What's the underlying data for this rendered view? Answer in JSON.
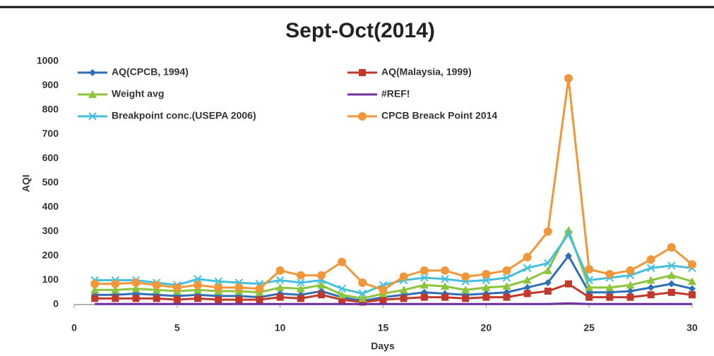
{
  "chart_data": {
    "type": "line",
    "title": "Sept-Oct(2014)",
    "xlabel": "Days",
    "ylabel": "AQI",
    "x": [
      1,
      2,
      3,
      4,
      5,
      6,
      7,
      8,
      9,
      10,
      11,
      12,
      13,
      14,
      15,
      16,
      17,
      18,
      19,
      20,
      21,
      22,
      23,
      24,
      25,
      26,
      27,
      28,
      29,
      30
    ],
    "xlim": [
      0,
      30
    ],
    "xticks": [
      0,
      5,
      10,
      15,
      20,
      25,
      30
    ],
    "ylim": [
      0,
      1000
    ],
    "yticks": [
      0,
      100,
      200,
      300,
      400,
      500,
      600,
      700,
      800,
      900,
      1000
    ],
    "grid": false,
    "legend": "upper left",
    "series": [
      {
        "name": "AQ(CPCB, 1994)",
        "color": "#2e6fb5",
        "marker": "diamond",
        "values": [
          40,
          40,
          45,
          40,
          35,
          40,
          35,
          35,
          30,
          45,
          40,
          55,
          30,
          15,
          30,
          40,
          50,
          45,
          40,
          45,
          50,
          70,
          90,
          200,
          50,
          50,
          55,
          70,
          85,
          65
        ]
      },
      {
        "name": "AQ(Malaysia, 1999)",
        "color": "#c0392b",
        "marker": "square",
        "values": [
          25,
          25,
          25,
          25,
          20,
          25,
          20,
          20,
          20,
          30,
          25,
          40,
          20,
          10,
          20,
          25,
          30,
          30,
          25,
          30,
          30,
          45,
          55,
          85,
          30,
          30,
          30,
          40,
          50,
          40
        ]
      },
      {
        "name": "Weight avg",
        "color": "#8cc43c",
        "marker": "triangle",
        "values": [
          60,
          60,
          65,
          60,
          55,
          60,
          55,
          55,
          50,
          70,
          65,
          80,
          40,
          25,
          45,
          60,
          80,
          75,
          60,
          70,
          75,
          100,
          140,
          305,
          70,
          70,
          80,
          100,
          120,
          95
        ]
      },
      {
        "name": "#REF!",
        "color": "#7030a0",
        "marker": "none",
        "values": [
          2,
          2,
          2,
          2,
          2,
          2,
          2,
          2,
          2,
          2,
          2,
          2,
          2,
          2,
          2,
          2,
          2,
          2,
          2,
          2,
          2,
          2,
          2,
          5,
          2,
          2,
          2,
          2,
          2,
          2
        ]
      },
      {
        "name": "Breakpoint conc.(USEPA 2006)",
        "color": "#45c0dc",
        "marker": "x",
        "values": [
          100,
          100,
          100,
          90,
          80,
          105,
          95,
          90,
          85,
          100,
          90,
          100,
          65,
          45,
          80,
          100,
          110,
          105,
          95,
          100,
          110,
          150,
          170,
          290,
          100,
          110,
          120,
          150,
          160,
          150
        ]
      },
      {
        "name": "CPCB Breack Point 2014",
        "color": "#f0973a",
        "marker": "circle",
        "values": [
          85,
          85,
          90,
          80,
          70,
          80,
          70,
          70,
          65,
          140,
          120,
          120,
          175,
          90,
          60,
          115,
          140,
          140,
          115,
          125,
          140,
          195,
          300,
          930,
          145,
          125,
          140,
          185,
          235,
          165
        ]
      }
    ]
  }
}
